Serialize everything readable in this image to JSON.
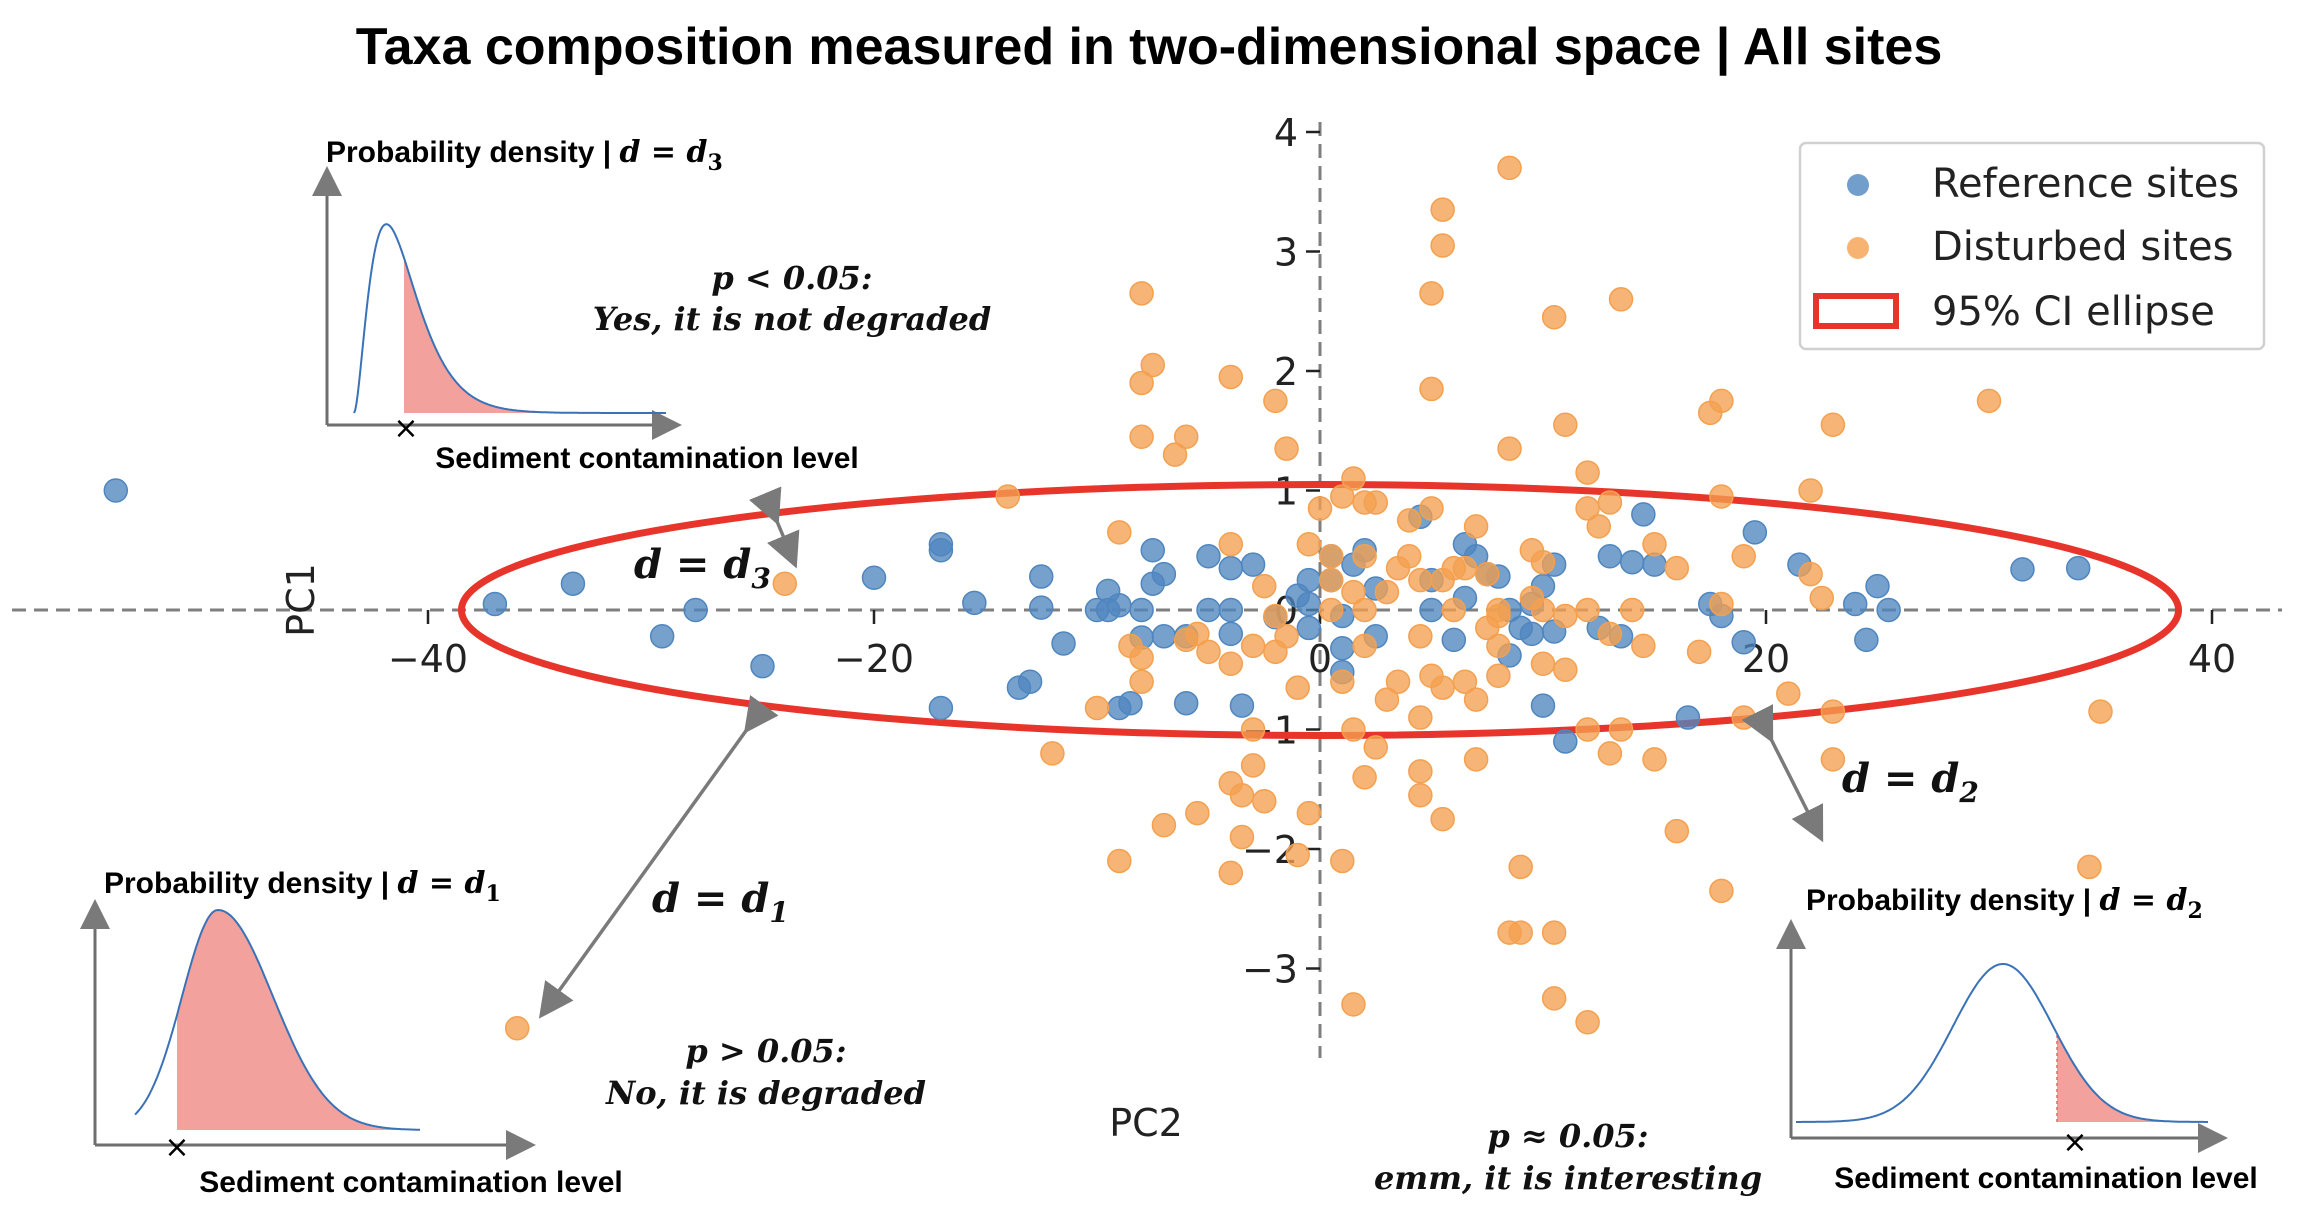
{
  "title": "Taxa composition measured in two-dimensional space | All sites",
  "chart_data": {
    "type": "scatter",
    "xlabel": "PC2",
    "ylabel": "PC1",
    "xlim": [
      -55,
      42
    ],
    "ylim": [
      -3.8,
      4.3
    ],
    "xticks": [
      -40,
      -20,
      0,
      20,
      40
    ],
    "yticks": [
      -3,
      -2,
      -1,
      0,
      1,
      2,
      3,
      4
    ],
    "xtick_labels": [
      "−40",
      "−20",
      "0",
      "20",
      "40"
    ],
    "ytick_labels": [
      "−3",
      "−2",
      "−1",
      "0",
      "1",
      "2",
      "3",
      "4"
    ],
    "ellipse": {
      "label": "95% CI ellipse",
      "cx": 0,
      "cy": 0,
      "rx": 38.5,
      "ry": 1.05,
      "color": "#e8352b"
    },
    "legend_position": "top-right",
    "series": [
      {
        "name": "Reference sites",
        "color": "#4f86bf",
        "points": [
          [
            -54,
            1.0
          ],
          [
            -37,
            0.05
          ],
          [
            -33.5,
            0.22
          ],
          [
            -29.5,
            -0.22
          ],
          [
            -28,
            0.0
          ],
          [
            -25,
            -0.47
          ],
          [
            -20,
            0.27
          ],
          [
            -17,
            -0.82
          ],
          [
            -17,
            0.5
          ],
          [
            -17,
            0.55
          ],
          [
            -15.5,
            0.06
          ],
          [
            -13.5,
            -0.65
          ],
          [
            -13,
            -0.6
          ],
          [
            -12.5,
            0.28
          ],
          [
            -12.5,
            0.02
          ],
          [
            -11.5,
            -0.28
          ],
          [
            -10,
            0.0
          ],
          [
            -9.5,
            0.16
          ],
          [
            -9.5,
            0.0
          ],
          [
            -9,
            0.04
          ],
          [
            -9,
            -0.82
          ],
          [
            -8.5,
            -0.78
          ],
          [
            -8,
            0.0
          ],
          [
            -8,
            -0.23
          ],
          [
            -7.5,
            0.22
          ],
          [
            -7.5,
            0.5
          ],
          [
            -7,
            -0.22
          ],
          [
            -7,
            0.3
          ],
          [
            -6,
            -0.22
          ],
          [
            -6,
            -0.78
          ],
          [
            -5,
            0.0
          ],
          [
            -5,
            0.45
          ],
          [
            -4,
            -0.2
          ],
          [
            -4,
            0.0
          ],
          [
            -4,
            0.35
          ],
          [
            -3.5,
            -0.8
          ],
          [
            -3,
            0.38
          ],
          [
            -2,
            -0.06
          ],
          [
            -1,
            0.12
          ],
          [
            -0.5,
            -0.15
          ],
          [
            -0.5,
            0.25
          ],
          [
            -0.5,
            0.05
          ],
          [
            0.5,
            0.45
          ],
          [
            0.5,
            0.25
          ],
          [
            1,
            -0.32
          ],
          [
            1,
            -0.52
          ],
          [
            1,
            -0.05
          ],
          [
            1.5,
            0.38
          ],
          [
            2,
            0.5
          ],
          [
            2.5,
            0.18
          ],
          [
            2.5,
            -0.22
          ],
          [
            4.5,
            0.78
          ],
          [
            5,
            0.25
          ],
          [
            5,
            0.0
          ],
          [
            6,
            -0.25
          ],
          [
            6.5,
            0.1
          ],
          [
            6.5,
            0.55
          ],
          [
            7,
            0.45
          ],
          [
            7.5,
            0.3
          ],
          [
            8,
            0.28
          ],
          [
            8.5,
            -0.38
          ],
          [
            8.5,
            0.0
          ],
          [
            9,
            -0.15
          ],
          [
            9.5,
            -0.2
          ],
          [
            9.5,
            0.05
          ],
          [
            10,
            -0.8
          ],
          [
            10,
            0.2
          ],
          [
            10.5,
            -0.18
          ],
          [
            10.5,
            0.38
          ],
          [
            11,
            -1.1
          ],
          [
            12.5,
            -0.15
          ],
          [
            13,
            0.45
          ],
          [
            13.5,
            -0.22
          ],
          [
            14,
            0.4
          ],
          [
            14.5,
            0.8
          ],
          [
            15,
            0.38
          ],
          [
            16.5,
            -0.9
          ],
          [
            17.5,
            0.05
          ],
          [
            18,
            -0.05
          ],
          [
            19,
            -0.27
          ],
          [
            19.5,
            0.65
          ],
          [
            21.5,
            0.38
          ],
          [
            24,
            0.05
          ],
          [
            24.5,
            -0.25
          ],
          [
            25,
            0.2
          ],
          [
            25.5,
            0.0
          ],
          [
            31.5,
            0.34
          ],
          [
            34,
            0.35
          ]
        ]
      },
      {
        "name": "Disturbed sites",
        "color": "#f4a04f",
        "points": [
          [
            -36,
            -3.5
          ],
          [
            -24,
            0.22
          ],
          [
            -14,
            0.95
          ],
          [
            -12,
            -1.2
          ],
          [
            -10,
            -0.82
          ],
          [
            -9,
            0.65
          ],
          [
            -9,
            -2.1
          ],
          [
            -8.5,
            -0.3
          ],
          [
            -8,
            -0.4
          ],
          [
            -8,
            -0.6
          ],
          [
            -8,
            1.45
          ],
          [
            -8,
            1.9
          ],
          [
            -8,
            2.65
          ],
          [
            -7.5,
            2.05
          ],
          [
            -7,
            -1.8
          ],
          [
            -6.5,
            1.3
          ],
          [
            -6,
            1.45
          ],
          [
            -6,
            -0.25
          ],
          [
            -5.5,
            -0.2
          ],
          [
            -5.5,
            -1.7
          ],
          [
            -5,
            -0.35
          ],
          [
            -4,
            -0.45
          ],
          [
            -4,
            1.95
          ],
          [
            -4,
            0.55
          ],
          [
            -4,
            -2.2
          ],
          [
            -4,
            -1.45
          ],
          [
            -3.5,
            -1.9
          ],
          [
            -3.5,
            -1.55
          ],
          [
            -3,
            -1.3
          ],
          [
            -3,
            -1.0
          ],
          [
            -3,
            -0.3
          ],
          [
            -2.5,
            0.2
          ],
          [
            -2.5,
            -1.6
          ],
          [
            -2,
            -0.35
          ],
          [
            -2,
            -0.05
          ],
          [
            -2,
            1.75
          ],
          [
            -1.5,
            1.35
          ],
          [
            -1.5,
            -0.22
          ],
          [
            -1,
            -0.65
          ],
          [
            -1,
            -2.05
          ],
          [
            -0.5,
            0.55
          ],
          [
            -0.5,
            -1.7
          ],
          [
            0,
            0.85
          ],
          [
            0.5,
            0.45
          ],
          [
            0.5,
            0.25
          ],
          [
            0.5,
            0.0
          ],
          [
            1,
            0.95
          ],
          [
            1,
            -0.6
          ],
          [
            1,
            -2.1
          ],
          [
            1.5,
            0.15
          ],
          [
            1.5,
            1.1
          ],
          [
            1.5,
            -1.0
          ],
          [
            1.5,
            -3.3
          ],
          [
            2,
            0.9
          ],
          [
            2,
            0.45
          ],
          [
            2,
            -0.3
          ],
          [
            2,
            -1.4
          ],
          [
            2,
            0.0
          ],
          [
            2.5,
            -1.15
          ],
          [
            2.5,
            0.9
          ],
          [
            3,
            -0.75
          ],
          [
            3,
            0.15
          ],
          [
            3.5,
            -0.6
          ],
          [
            3.5,
            0.35
          ],
          [
            4,
            0.45
          ],
          [
            4,
            0.75
          ],
          [
            4.5,
            -1.35
          ],
          [
            4.5,
            -0.9
          ],
          [
            4.5,
            -0.22
          ],
          [
            4.5,
            0.25
          ],
          [
            4.5,
            -1.55
          ],
          [
            5,
            0.85
          ],
          [
            5,
            1.85
          ],
          [
            5,
            2.65
          ],
          [
            5,
            -0.55
          ],
          [
            5.5,
            0.25
          ],
          [
            5.5,
            -0.65
          ],
          [
            5.5,
            3.05
          ],
          [
            5.5,
            3.35
          ],
          [
            5.5,
            -1.75
          ],
          [
            6,
            0.0
          ],
          [
            6,
            0.35
          ],
          [
            6.5,
            -0.6
          ],
          [
            6.5,
            0.35
          ],
          [
            7,
            -1.25
          ],
          [
            7,
            -0.75
          ],
          [
            7,
            0.7
          ],
          [
            7.5,
            -0.15
          ],
          [
            7.5,
            0.3
          ],
          [
            8,
            -0.3
          ],
          [
            8,
            0.0
          ],
          [
            8,
            -0.05
          ],
          [
            8,
            -0.55
          ],
          [
            8.5,
            1.35
          ],
          [
            8.5,
            3.7
          ],
          [
            8.5,
            -2.7
          ],
          [
            9,
            -2.15
          ],
          [
            9,
            -2.7
          ],
          [
            9.5,
            0.5
          ],
          [
            9.5,
            0.1
          ],
          [
            10,
            0.0
          ],
          [
            10,
            -0.45
          ],
          [
            10,
            0.4
          ],
          [
            10.5,
            -3.25
          ],
          [
            10.5,
            2.45
          ],
          [
            10.5,
            -2.7
          ],
          [
            11,
            -0.05
          ],
          [
            11,
            -0.5
          ],
          [
            11,
            1.55
          ],
          [
            12,
            -3.45
          ],
          [
            12,
            0.85
          ],
          [
            12,
            1.15
          ],
          [
            12,
            -1.0
          ],
          [
            12,
            0.0
          ],
          [
            12.5,
            0.7
          ],
          [
            13,
            0.9
          ],
          [
            13,
            -0.2
          ],
          [
            13,
            -1.2
          ],
          [
            13.5,
            2.6
          ],
          [
            13.5,
            -1.0
          ],
          [
            14,
            0.0
          ],
          [
            14.5,
            -0.3
          ],
          [
            15,
            0.55
          ],
          [
            15,
            -1.25
          ],
          [
            16,
            -1.85
          ],
          [
            16,
            0.35
          ],
          [
            17,
            -0.35
          ],
          [
            17.5,
            1.65
          ],
          [
            18,
            0.95
          ],
          [
            18,
            1.75
          ],
          [
            18,
            0.05
          ],
          [
            18,
            -2.35
          ],
          [
            19,
            -0.9
          ],
          [
            19,
            0.45
          ],
          [
            21,
            -0.7
          ],
          [
            22,
            1.0
          ],
          [
            22,
            0.3
          ],
          [
            22.5,
            0.1
          ],
          [
            23,
            1.55
          ],
          [
            23,
            -1.25
          ],
          [
            23,
            -0.85
          ],
          [
            30,
            1.75
          ],
          [
            34.5,
            -2.15
          ],
          [
            35,
            -0.85
          ]
        ]
      }
    ]
  },
  "annotations": {
    "d1": {
      "lhs": "d",
      "rhs": "d",
      "sub": "1"
    },
    "d2": {
      "lhs": "d",
      "rhs": "d",
      "sub": "2"
    },
    "d3": {
      "lhs": "d",
      "rhs": "d",
      "sub": "3"
    },
    "p_low": {
      "line1": "p < 0.05:",
      "line2": "Yes, it is not degraded"
    },
    "p_high": {
      "line1": "p > 0.05:",
      "line2": "No, it is degraded"
    },
    "p_approx": {
      "line1": "p ≈ 0.05:",
      "line2": "emm, it is interesting"
    }
  },
  "insets": [
    {
      "id": "d3",
      "title_prefix": "Probability density | ",
      "title_lhs": "d",
      "title_rhs": "d",
      "title_sub": "3",
      "xlabel": "Sediment contamination level",
      "marker": "×"
    },
    {
      "id": "d1",
      "title_prefix": "Probability density | ",
      "title_lhs": "d",
      "title_rhs": "d",
      "title_sub": "1",
      "xlabel": "Sediment contamination level",
      "marker": "×"
    },
    {
      "id": "d2",
      "title_prefix": "Probability density | ",
      "title_lhs": "d",
      "title_rhs": "d",
      "title_sub": "2",
      "xlabel": "Sediment contamination level",
      "marker": "×"
    }
  ],
  "legend": {
    "items": [
      {
        "label": "Reference sites",
        "color": "#4f86bf",
        "kind": "dot"
      },
      {
        "label": "Disturbed sites",
        "color": "#f4a04f",
        "kind": "dot"
      },
      {
        "label": "95% CI ellipse",
        "color": "#e8352b",
        "kind": "rect"
      }
    ]
  },
  "colors": {
    "axis": "#7f7f7f",
    "pdf_line": "#3a72b8",
    "pdf_fill": "#f2a19d",
    "arrow": "#7a7a7a"
  }
}
